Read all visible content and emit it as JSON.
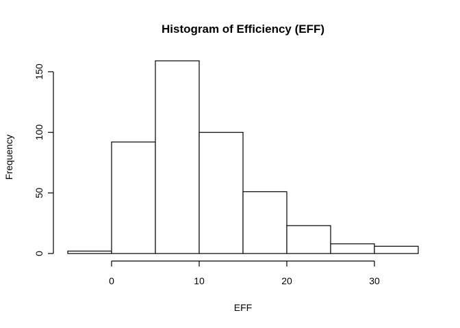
{
  "chart_data": {
    "type": "bar",
    "title": "Histogram of Efficiency (EFF)",
    "xlabel": "EFF",
    "ylabel": "Frequency",
    "bins": [
      {
        "from": -5,
        "to": 0,
        "count": 2
      },
      {
        "from": 0,
        "to": 5,
        "count": 92
      },
      {
        "from": 5,
        "to": 10,
        "count": 159
      },
      {
        "from": 10,
        "to": 15,
        "count": 100
      },
      {
        "from": 15,
        "to": 20,
        "count": 51
      },
      {
        "from": 20,
        "to": 25,
        "count": 23
      },
      {
        "from": 25,
        "to": 30,
        "count": 8
      },
      {
        "from": 30,
        "to": 35,
        "count": 6
      }
    ],
    "x_ticks": [
      0,
      10,
      20,
      30
    ],
    "y_ticks": [
      0,
      50,
      100,
      150
    ],
    "xlim": [
      -5,
      35
    ],
    "ylim": [
      0,
      159
    ],
    "grid": false,
    "legend": "none"
  }
}
